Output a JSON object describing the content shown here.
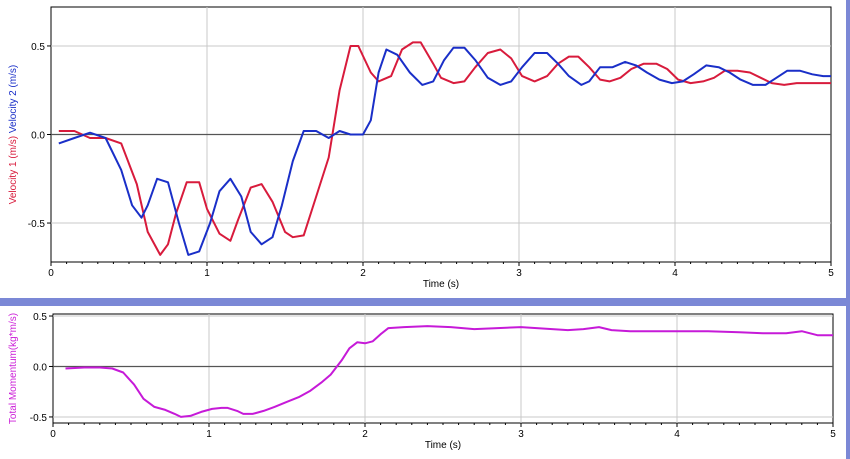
{
  "chart_data": [
    {
      "type": "line",
      "xlabel": "Time (s)",
      "ylabel_parts": [
        {
          "text": "Velocity 1 (m/s)",
          "color": "#d81b3c"
        },
        {
          "text": "Velocity 2 (m/s)",
          "color": "#1a2fc8"
        }
      ],
      "xlim": [
        0,
        5
      ],
      "ylim": [
        -0.72,
        0.72
      ],
      "x_ticks": [
        0,
        1,
        2,
        3,
        4,
        5
      ],
      "y_ticks": [
        -0.5,
        0.0,
        0.5
      ],
      "y_tick_labels": [
        "-0.5",
        "0.0",
        "0.5"
      ],
      "grid": true,
      "series": [
        {
          "color": "#d81b3c",
          "x": [
            0.05,
            0.15,
            0.25,
            0.35,
            0.45,
            0.55,
            0.62,
            0.7,
            0.75,
            0.8,
            0.87,
            0.95,
            1.0,
            1.08,
            1.15,
            1.2,
            1.28,
            1.35,
            1.42,
            1.5,
            1.55,
            1.62,
            1.7,
            1.78,
            1.85,
            1.92,
            1.97,
            2.05,
            2.1,
            2.18,
            2.25,
            2.32,
            2.37,
            2.45,
            2.5,
            2.58,
            2.65,
            2.72,
            2.8,
            2.88,
            2.95,
            3.02,
            3.1,
            3.18,
            3.25,
            3.32,
            3.38,
            3.45,
            3.52,
            3.58,
            3.65,
            3.72,
            3.8,
            3.88,
            3.95,
            4.02,
            4.1,
            4.18,
            4.25,
            4.32,
            4.4,
            4.48,
            4.55,
            4.62,
            4.7,
            4.78,
            4.85,
            4.92,
            5.0
          ],
          "y": [
            0.02,
            0.02,
            -0.02,
            -0.02,
            -0.05,
            -0.28,
            -0.55,
            -0.68,
            -0.62,
            -0.45,
            -0.27,
            -0.27,
            -0.42,
            -0.56,
            -0.6,
            -0.48,
            -0.3,
            -0.28,
            -0.38,
            -0.55,
            -0.58,
            -0.57,
            -0.35,
            -0.13,
            0.25,
            0.5,
            0.5,
            0.35,
            0.3,
            0.33,
            0.48,
            0.52,
            0.52,
            0.4,
            0.32,
            0.29,
            0.3,
            0.38,
            0.46,
            0.48,
            0.43,
            0.33,
            0.3,
            0.33,
            0.4,
            0.44,
            0.44,
            0.38,
            0.31,
            0.3,
            0.32,
            0.37,
            0.4,
            0.4,
            0.37,
            0.31,
            0.29,
            0.3,
            0.32,
            0.36,
            0.36,
            0.35,
            0.32,
            0.29,
            0.28,
            0.29,
            0.29,
            0.29,
            0.29
          ]
        },
        {
          "color": "#1a2fc8",
          "x": [
            0.05,
            0.15,
            0.25,
            0.35,
            0.45,
            0.52,
            0.58,
            0.62,
            0.68,
            0.75,
            0.82,
            0.88,
            0.95,
            1.02,
            1.08,
            1.15,
            1.22,
            1.28,
            1.35,
            1.42,
            1.48,
            1.55,
            1.62,
            1.7,
            1.78,
            1.85,
            1.92,
            2.0,
            2.05,
            2.1,
            2.15,
            2.22,
            2.3,
            2.38,
            2.45,
            2.52,
            2.58,
            2.65,
            2.72,
            2.8,
            2.88,
            2.95,
            3.02,
            3.1,
            3.18,
            3.25,
            3.32,
            3.4,
            3.45,
            3.52,
            3.6,
            3.68,
            3.75,
            3.82,
            3.9,
            3.98,
            4.05,
            4.12,
            4.2,
            4.28,
            4.35,
            4.42,
            4.5,
            4.58,
            4.65,
            4.72,
            4.8,
            4.88,
            4.95,
            5.0
          ],
          "y": [
            -0.05,
            -0.02,
            0.01,
            -0.02,
            -0.2,
            -0.4,
            -0.47,
            -0.4,
            -0.25,
            -0.27,
            -0.5,
            -0.68,
            -0.66,
            -0.5,
            -0.32,
            -0.25,
            -0.35,
            -0.55,
            -0.62,
            -0.58,
            -0.4,
            -0.15,
            0.02,
            0.02,
            -0.02,
            0.02,
            0.0,
            0.0,
            0.08,
            0.35,
            0.48,
            0.45,
            0.35,
            0.28,
            0.3,
            0.42,
            0.49,
            0.49,
            0.42,
            0.32,
            0.28,
            0.3,
            0.38,
            0.46,
            0.46,
            0.4,
            0.33,
            0.28,
            0.3,
            0.38,
            0.38,
            0.41,
            0.39,
            0.35,
            0.31,
            0.29,
            0.3,
            0.34,
            0.39,
            0.38,
            0.35,
            0.31,
            0.28,
            0.28,
            0.32,
            0.36,
            0.36,
            0.34,
            0.33,
            0.33
          ]
        }
      ]
    },
    {
      "type": "line",
      "xlabel": "Time (s)",
      "ylabel_parts": [
        {
          "text": "Total Momentum(kg*m/s)",
          "color": "#cc1fd8"
        }
      ],
      "xlim": [
        0,
        5
      ],
      "ylim": [
        -0.56,
        0.52
      ],
      "x_ticks": [
        0,
        1,
        2,
        3,
        4,
        5
      ],
      "y_ticks": [
        -0.5,
        0.0,
        0.5
      ],
      "y_tick_labels": [
        "-0.5",
        "0.0",
        "0.5"
      ],
      "grid": true,
      "series": [
        {
          "color": "#c61ad8",
          "x": [
            0.08,
            0.2,
            0.3,
            0.38,
            0.45,
            0.52,
            0.58,
            0.65,
            0.72,
            0.78,
            0.82,
            0.88,
            0.95,
            1.02,
            1.08,
            1.12,
            1.18,
            1.22,
            1.28,
            1.35,
            1.42,
            1.5,
            1.58,
            1.65,
            1.72,
            1.78,
            1.85,
            1.9,
            1.95,
            2.0,
            2.05,
            2.1,
            2.15,
            2.25,
            2.4,
            2.55,
            2.7,
            2.85,
            3.0,
            3.1,
            3.2,
            3.3,
            3.4,
            3.5,
            3.58,
            3.7,
            3.85,
            4.0,
            4.2,
            4.4,
            4.55,
            4.7,
            4.8,
            4.9,
            5.0
          ],
          "y": [
            -0.02,
            -0.01,
            -0.01,
            -0.02,
            -0.06,
            -0.18,
            -0.32,
            -0.4,
            -0.43,
            -0.47,
            -0.5,
            -0.49,
            -0.45,
            -0.42,
            -0.41,
            -0.41,
            -0.44,
            -0.47,
            -0.47,
            -0.44,
            -0.4,
            -0.35,
            -0.3,
            -0.24,
            -0.16,
            -0.08,
            0.06,
            0.18,
            0.24,
            0.23,
            0.25,
            0.32,
            0.38,
            0.39,
            0.4,
            0.39,
            0.37,
            0.38,
            0.39,
            0.38,
            0.37,
            0.36,
            0.37,
            0.39,
            0.36,
            0.35,
            0.35,
            0.35,
            0.35,
            0.34,
            0.33,
            0.33,
            0.35,
            0.31,
            0.31
          ]
        }
      ]
    }
  ]
}
